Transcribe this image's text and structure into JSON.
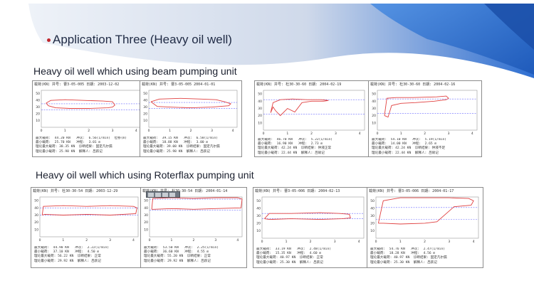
{
  "slide": {
    "title": "Application  Three (Heavy oil well)",
    "section_beam": "Heavy oil well which using  beam pumping unit",
    "section_rotaflex": "Heavy oil well which using Roterflax pumping unit"
  },
  "colors": {
    "accent_blue": "#2a66c5",
    "curve": "#e04040",
    "ref_line": "#6a6aff"
  },
  "cards_beam": [
    {
      "header": "载荷(KN)  井号:   曹3-05-005       日期: 2003-12-02",
      "footer": "最大载荷:  44.20 KN   冲次:  6.56(1/min)  位移(m)\n最小载荷:  25.70 KN   冲程:  3.01 m\n理论最大载荷: 38.35 KN  诊断结果: 固定凡尔漏\n理论最小载荷: 25.98 KN  解释人: 吕跃记"
    },
    {
      "header": "载荷(KN)  井号:   曹3-05-005     2004-01-01",
      "footer": "最大载荷:  39.15 KN   冲次:  6.58(1/min)\n最小载荷:  18.88 KN   冲程:  3.00 m\n理论最大载荷: 39.08 KN  诊断结果: 固定凡尔漏\n理论最小载荷: 25.98 KN  解释人: 吕跃记"
    },
    {
      "header": "载荷(KN)  井号: 杜30-30-60       日期: 2004-02-19",
      "footer": "最大载荷:  46.70 KN   冲次:  5.22(1/min)\n最小载荷:  16.90 KN   冲程:  2.73 m\n理论最大载荷: 42.24 KN  诊断结果: 供液正常\n理论最小载荷: 22.44 KN  解释人: 吕硕记"
    },
    {
      "header": "载荷(KN)  井号: 杜30-30-60       日期: 2004-02-16",
      "footer": "最大载荷:  54.10 KN   冲次:  5.19(1/min)\n最小载荷:  14.00 KN   冲程:  2.65 m\n理论最大载荷: 42.24 KN  诊断结果: 供液不足\n理论最小载荷: 22.44 KN  解释人: 吕硕记"
    }
  ],
  "cards_rotaflex": [
    {
      "header": "载荷(KN)  井号: 杜30-30-54    日期: 2003-12-29",
      "footer": "最大载荷:  44.90 KN   冲次:  2.22(1/min)\n最小载荷:  37.10 KN   冲程:  4.50 m\n理论最大载荷: 56.22 KN  诊断结果: 正常\n理论最小载荷: 29.92 KN  解释人: 吕跃记"
    },
    {
      "header": "载荷(KN)  井号: 杜30-30-54    日期: 2004-01-14",
      "footer": "最大载荷:  53.50 KN   冲次:  2.25(1/min)\n最小载荷:  36.60 KN   冲程:  4.55 m\n理论最大载荷: 55.20 KN  诊断结果: 正常\n理论最小载荷: 29.92 KN  解释人: 吕跃记"
    },
    {
      "header": "载荷(KN)  井号:  曹3-05-006       日期: 2004-02-13",
      "footer": "最大载荷:  33.19 KN   冲次:  2.48(1/min)\n最小载荷:  15.35 KN   冲程:  4.60 m\n理论最大载荷: 40.97 KN  诊断结果: 正常\n理论最小载荷: 25.30 KN  解释人: 吕跃记"
    },
    {
      "header": "载荷(KN)  井号:  曹3-05-006       日期: 2004-01-17",
      "footer": "最大载荷:  54.76 KN   冲次:  2.47(1/min)\n最小载荷:  18.28 KN   冲程:  4.56 m\n理论最大载荷: 40.97 KN  诊断结果: 固定凡尔漏\n理论最小载荷: 25.30 KN  解释人: 吕跃记"
    }
  ],
  "chart_data": [
    {
      "type": "line",
      "yticks": [
        "50",
        "40",
        "30",
        "20",
        "10"
      ],
      "xticks": [
        "0",
        "1",
        "2",
        "3",
        "4"
      ],
      "ref": [
        35,
        26
      ],
      "series": [
        {
          "x": [
            0.2,
            0.4,
            1.0,
            1.8,
            2.6,
            3.0,
            3.1,
            3.0,
            2.8,
            2.0,
            1.2,
            0.6,
            0.3,
            0.2
          ],
          "y": [
            36,
            40,
            41,
            40,
            39,
            38,
            33,
            30,
            29,
            28,
            28,
            29,
            32,
            36
          ]
        }
      ]
    },
    {
      "type": "line",
      "yticks": [
        "50",
        "40",
        "30",
        "20",
        "10"
      ],
      "xticks": [
        "0",
        "1",
        "2",
        "3",
        "4"
      ],
      "ref": [
        37,
        28
      ],
      "series": [
        {
          "x": [
            0.1,
            0.5,
            1.5,
            2.5,
            3.2,
            3.6,
            3.9,
            3.8,
            3.0,
            2.0,
            1.0,
            0.4,
            0.1
          ],
          "y": [
            38,
            42,
            43,
            42,
            41,
            38,
            35,
            32,
            30,
            29,
            30,
            31,
            38
          ]
        }
      ]
    },
    {
      "type": "line",
      "yticks": [
        "50",
        "40",
        "30",
        "20",
        "10"
      ],
      "xticks": [
        "0",
        "1",
        "2",
        "3",
        "4"
      ],
      "ref": [
        42,
        22
      ],
      "series": [
        {
          "x": [
            0.3,
            0.4,
            0.7,
            1.2,
            1.8,
            2.4,
            2.7,
            2.5,
            2.0,
            1.6,
            1.3,
            1.0,
            0.7,
            0.5,
            0.4,
            0.3
          ],
          "y": [
            24,
            38,
            42,
            43,
            42,
            42,
            41,
            40,
            40,
            38,
            25,
            30,
            20,
            27,
            32,
            24
          ]
        }
      ]
    },
    {
      "type": "line",
      "yticks": [
        "50",
        "40",
        "30",
        "20",
        "10"
      ],
      "xticks": [
        "0",
        "1",
        "2",
        "3",
        "4"
      ],
      "ref": [
        43,
        23
      ],
      "series": [
        {
          "x": [
            0.3,
            0.4,
            0.8,
            1.5,
            2.5,
            2.9,
            3.0,
            2.9,
            2.4,
            1.6,
            1.0,
            0.6,
            0.45,
            0.3
          ],
          "y": [
            20,
            44,
            45,
            45,
            46,
            47,
            44,
            42,
            40,
            38,
            37,
            34,
            18,
            20
          ]
        }
      ]
    },
    {
      "type": "line",
      "yticks": [
        "50",
        "40",
        "30",
        "20",
        "10"
      ],
      "xticks": [
        "0",
        "1",
        "2",
        "3",
        "4"
      ],
      "ref": [
        40,
        30
      ],
      "series": [
        {
          "x": [
            0.1,
            0.15,
            1.0,
            2.0,
            3.0,
            4.0,
            4.15,
            4.1,
            3.0,
            2.0,
            1.0,
            0.2,
            0.1
          ],
          "y": [
            30,
            42,
            43,
            42,
            43,
            42,
            40,
            32,
            30,
            31,
            30,
            31,
            30
          ]
        }
      ]
    },
    {
      "type": "line",
      "yticks": [
        "50",
        "40",
        "30",
        "20",
        "10"
      ],
      "xticks": [
        "0",
        "1",
        "2",
        "3",
        "4"
      ],
      "ref": [
        52,
        37
      ],
      "series": [
        {
          "x": [
            0.1,
            0.15,
            1.0,
            2.0,
            3.0,
            4.0,
            4.2,
            4.15,
            3.0,
            2.0,
            1.0,
            0.2,
            0.1
          ],
          "y": [
            38,
            53,
            54,
            53,
            54,
            54,
            52,
            40,
            39,
            38,
            39,
            38,
            38
          ]
        }
      ]
    },
    {
      "type": "line",
      "yticks": [
        "50",
        "40",
        "30",
        "20",
        "10"
      ],
      "xticks": [
        "0",
        "1",
        "2",
        "3",
        "4"
      ],
      "ref": [
        33,
        26
      ],
      "series": [
        {
          "x": [
            0.1,
            0.3,
            1.2,
            2.4,
            3.2,
            3.6,
            3.65,
            3.3,
            2.4,
            1.2,
            0.3,
            0.1
          ],
          "y": [
            26,
            33,
            33,
            34,
            33,
            32,
            27,
            26,
            25,
            26,
            25,
            26
          ]
        }
      ]
    },
    {
      "type": "line",
      "yticks": [
        "50",
        "40",
        "30",
        "20",
        "10"
      ],
      "xticks": [
        "0",
        "1",
        "2",
        "3",
        "4"
      ],
      "ref": [
        41,
        25
      ],
      "series": [
        {
          "x": [
            0.1,
            0.3,
            1.0,
            2.0,
            3.0,
            3.8,
            4.0,
            3.9,
            3.2,
            2.5,
            2.0,
            1.0,
            0.3,
            0.1
          ],
          "y": [
            20,
            50,
            54,
            54,
            54,
            53,
            50,
            44,
            42,
            22,
            20,
            19,
            20,
            20
          ]
        }
      ]
    }
  ]
}
